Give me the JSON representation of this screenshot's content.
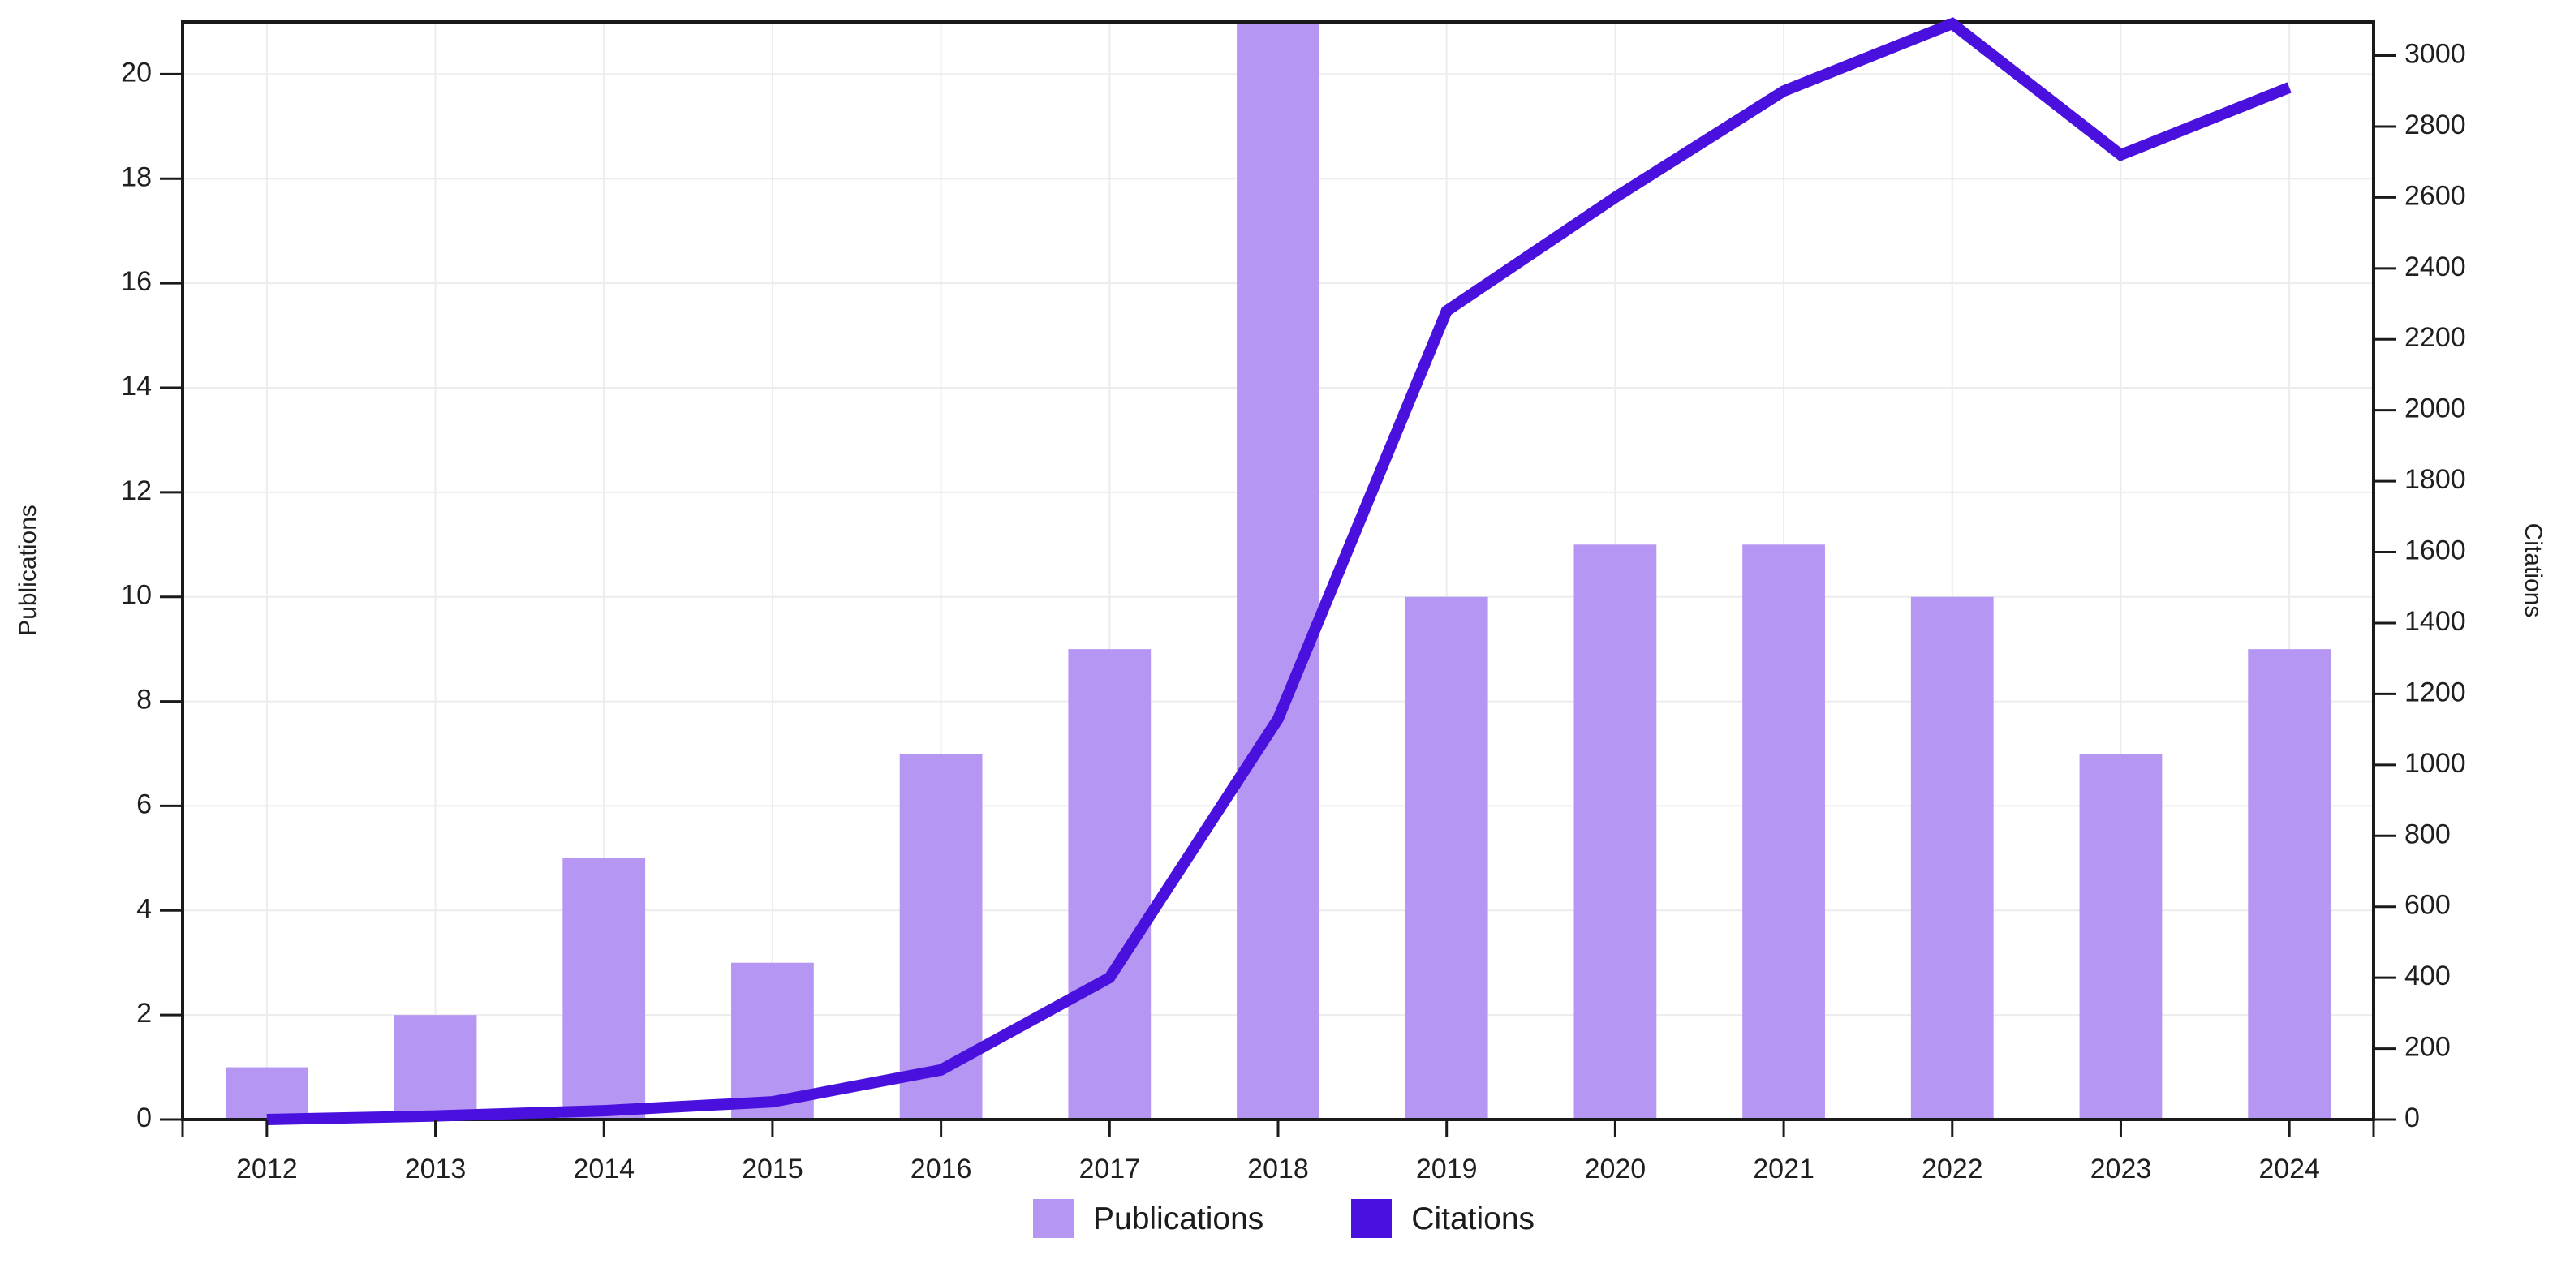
{
  "chart_data": {
    "type": "bar+line",
    "title": "",
    "categories": [
      "2012",
      "2013",
      "2014",
      "2015",
      "2016",
      "2017",
      "2018",
      "2019",
      "2020",
      "2021",
      "2022",
      "2023",
      "2024"
    ],
    "series": [
      {
        "name": "Publications",
        "type": "bar",
        "axis": "left",
        "color": "#b596f3",
        "values": [
          1,
          2,
          5,
          3,
          7,
          9,
          21,
          10,
          11,
          11,
          10,
          7,
          9
        ]
      },
      {
        "name": "Citations",
        "type": "line",
        "axis": "right",
        "color": "#4a10dd",
        "values": [
          0,
          10,
          25,
          50,
          140,
          400,
          1130,
          2280,
          2600,
          2900,
          3090,
          2720,
          2910
        ]
      }
    ],
    "left_axis": {
      "label": "Publications",
      "min": 0,
      "max": 21,
      "tick_step": 2,
      "ticks": [
        0,
        2,
        4,
        6,
        8,
        10,
        12,
        14,
        16,
        18,
        20
      ]
    },
    "right_axis": {
      "label": "Citations",
      "min": 0,
      "max": 3095,
      "tick_step": 200,
      "ticks": [
        0,
        200,
        400,
        600,
        800,
        1000,
        1200,
        1400,
        1600,
        1800,
        2000,
        2200,
        2400,
        2600,
        2800,
        3000
      ]
    },
    "x_axis": {
      "tick_labels": [
        "2012",
        "2013",
        "2014",
        "2015",
        "2016",
        "2017",
        "2018",
        "2019",
        "2020",
        "2021",
        "2022",
        "2023",
        "2024"
      ]
    },
    "legend": {
      "position": "bottom",
      "entries": [
        "Publications",
        "Citations"
      ]
    },
    "grid": true,
    "grid_color": "#ececec",
    "axis_color": "#1a1a1a",
    "tick_label_color": "#1f1f1f",
    "notes": "2018 Publications bar is clipped by the top of the plot area (value reaches/exceeds axis top ~21)."
  }
}
